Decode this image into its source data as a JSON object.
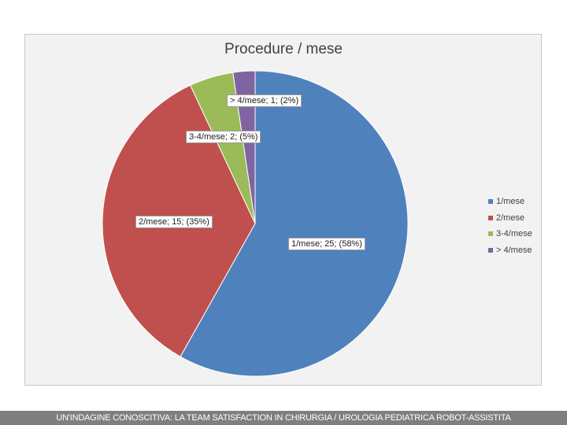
{
  "chart_data": {
    "type": "pie",
    "title": "Procedure / mese",
    "categories": [
      "1/mese",
      "2/mese",
      "3-4/mese",
      "> 4/mese"
    ],
    "values": [
      25,
      15,
      2,
      1
    ],
    "percentages": [
      "58%",
      "35%",
      "5%",
      "2%"
    ],
    "colors": [
      "#4f81bd",
      "#c0504d",
      "#9bbb59",
      "#8064a2"
    ],
    "data_labels": [
      "1/mese; 25; (58%)",
      "2/mese; 15; (35%)",
      "3-4/mese; 2; (5%)",
      "> 4/mese; 1; (2%)"
    ],
    "legend_position": "right"
  },
  "footer": {
    "text": "UN'INDAGINE CONOSCITIVA: LA TEAM SATISFACTION IN CHIRURGIA / UROLOGIA PEDIATRICA ROBOT-ASSISTITA"
  }
}
